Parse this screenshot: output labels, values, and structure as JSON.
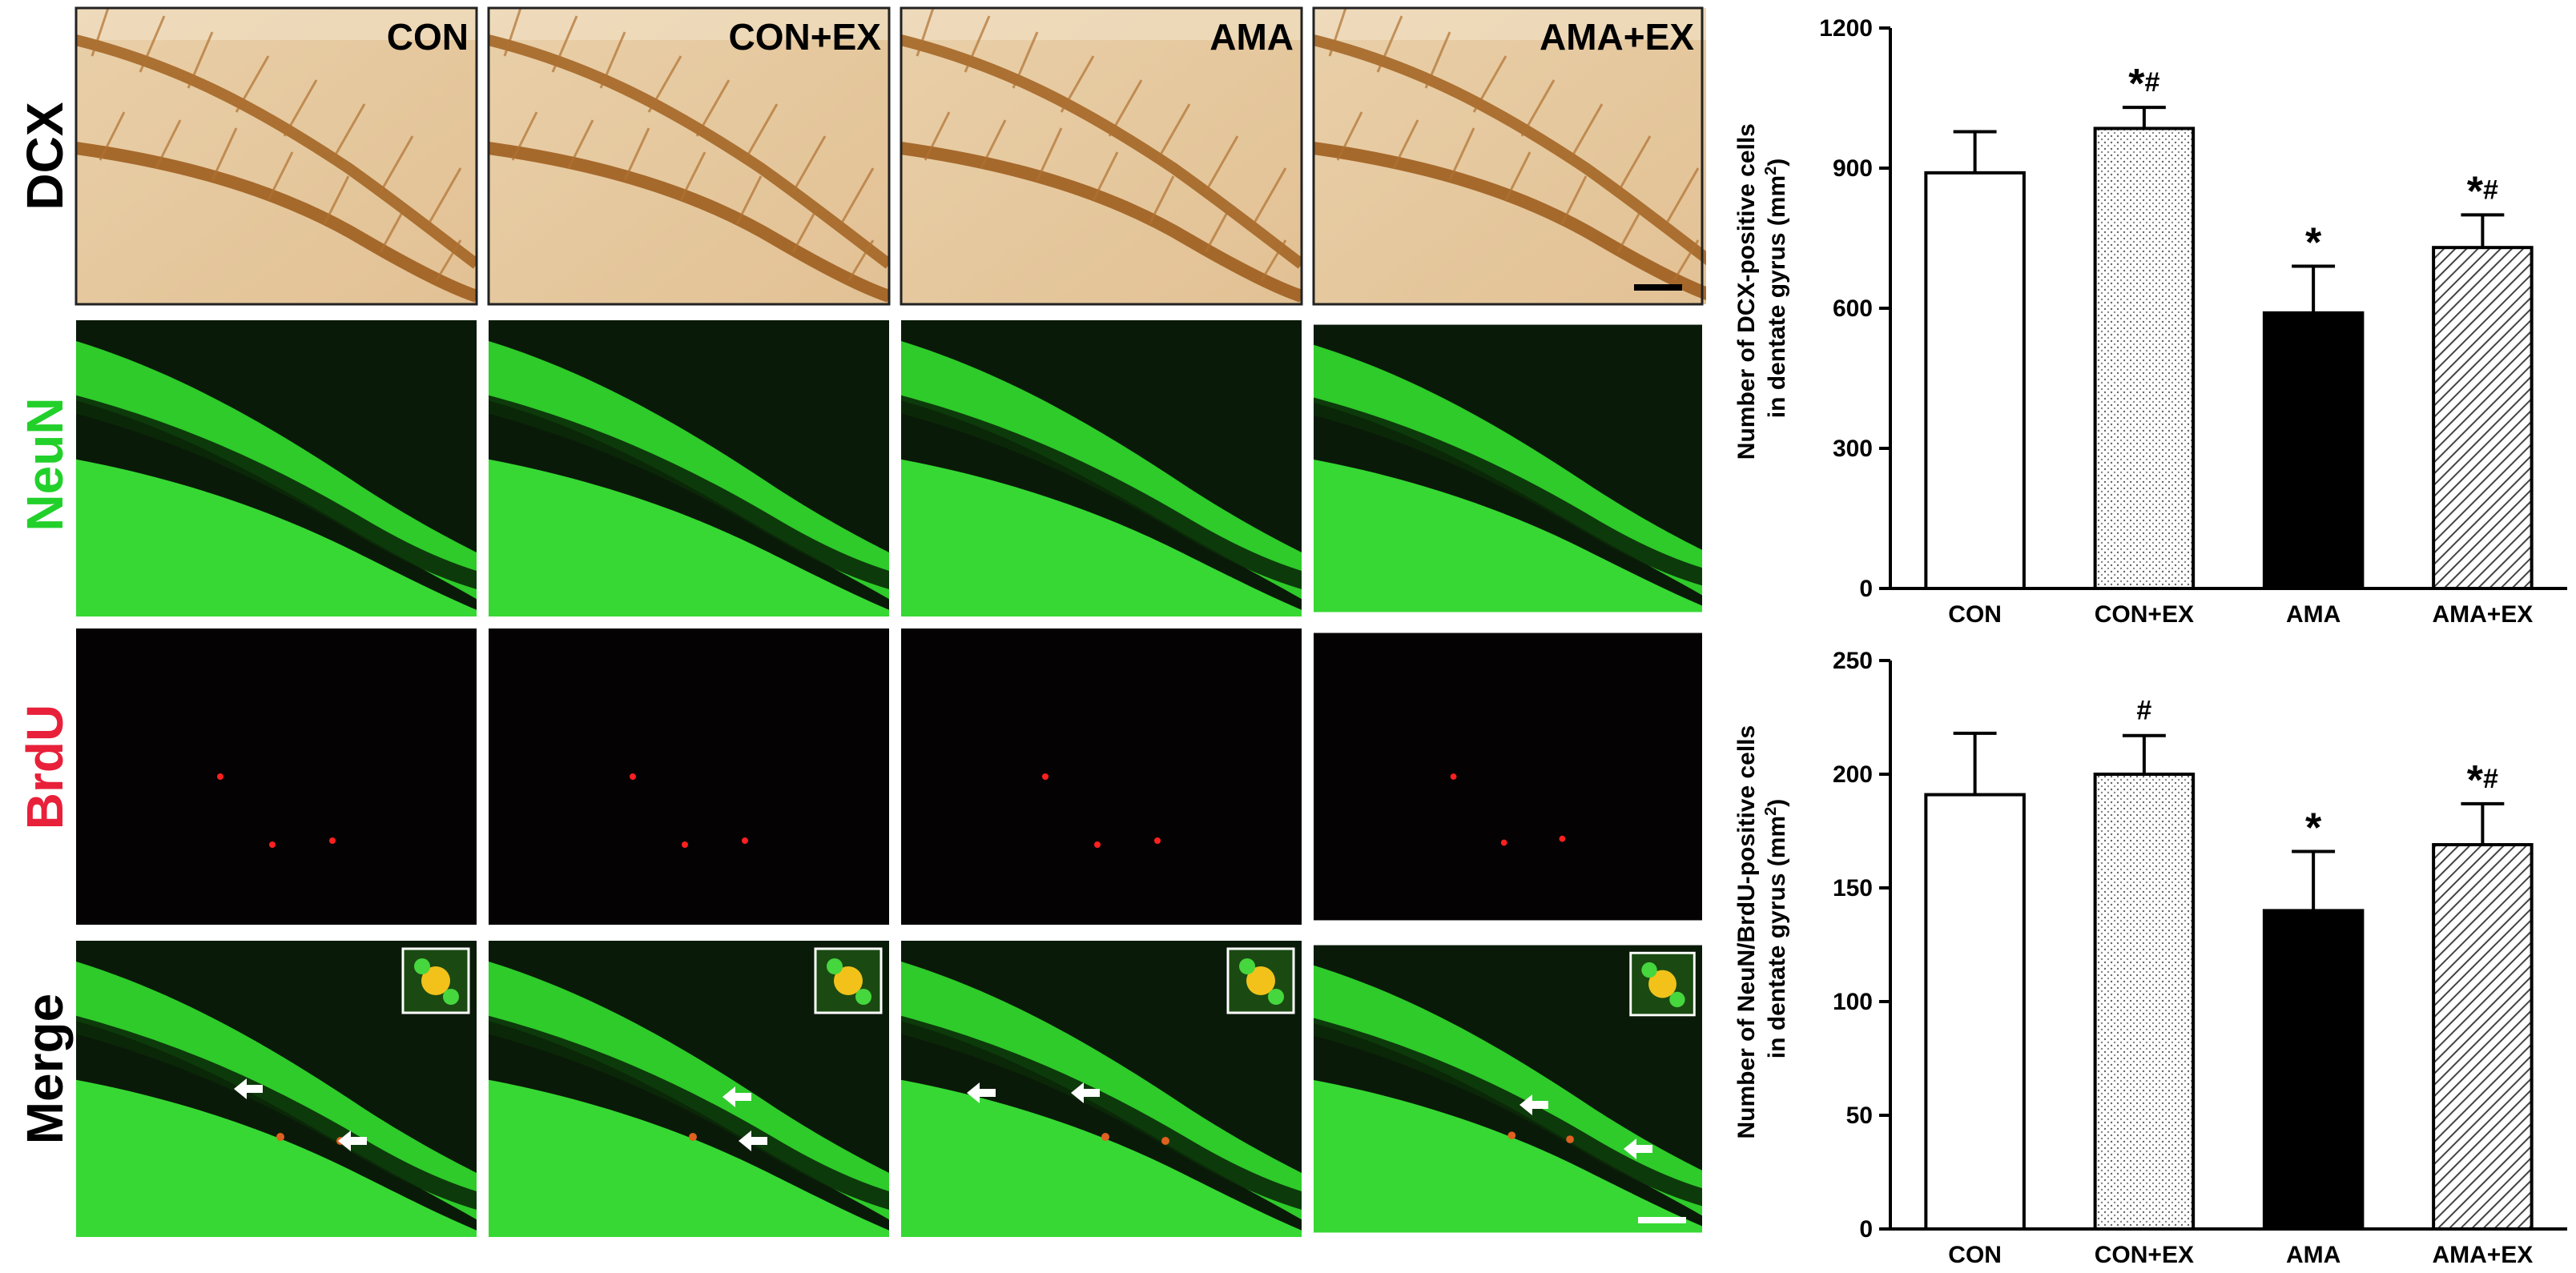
{
  "row_labels": [
    {
      "text": "DCX",
      "color": "#000000"
    },
    {
      "text": "NeuN",
      "color": "#22d02a"
    },
    {
      "text": "BrdU",
      "color": "#e8203a"
    },
    {
      "text": "Merge",
      "color": "#000000"
    }
  ],
  "groups": [
    "CON",
    "CON+EX",
    "AMA",
    "AMA+EX"
  ],
  "chart_data": [
    {
      "type": "bar",
      "categories": [
        "CON",
        "CON+EX",
        "AMA",
        "AMA+EX"
      ],
      "values": [
        890,
        985,
        590,
        730
      ],
      "errors": [
        88,
        45,
        100,
        70
      ],
      "significance": [
        "",
        "*#",
        "*",
        "*#"
      ],
      "ylabel_line1": "Number of DCX-positive cells",
      "ylabel_line2": "in dentate gyrus (mm",
      "ylabel_sup": "2",
      "ylabel_tail": ")",
      "ylim": [
        0,
        1200
      ],
      "yticks": [
        0,
        300,
        600,
        900,
        1200
      ],
      "bar_styles": [
        "white",
        "dotted",
        "black",
        "hatched"
      ]
    },
    {
      "type": "bar",
      "categories": [
        "CON",
        "CON+EX",
        "AMA",
        "AMA+EX"
      ],
      "values": [
        191,
        200,
        140,
        169
      ],
      "errors": [
        27,
        17,
        26,
        18
      ],
      "significance": [
        "",
        "#",
        "*",
        "*#"
      ],
      "ylabel_line1": "Number of NeuN/BrdU-positive cells",
      "ylabel_line2": "in dentate gyrus (mm",
      "ylabel_sup": "2",
      "ylabel_tail": ")",
      "ylim": [
        0,
        250
      ],
      "yticks": [
        0,
        50,
        100,
        150,
        200,
        250
      ],
      "bar_styles": [
        "white",
        "dotted",
        "black",
        "hatched"
      ]
    }
  ]
}
